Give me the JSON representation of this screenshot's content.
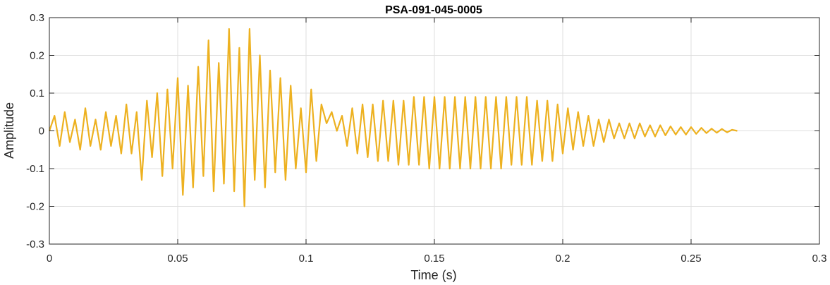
{
  "chart_data": {
    "type": "line",
    "title": "PSA-091-045-0005",
    "xlabel": "Time (s)",
    "ylabel": "Amplitude",
    "xlim": [
      0,
      0.3
    ],
    "ylim": [
      -0.3,
      0.3
    ],
    "grid": true,
    "x_ticks": [
      {
        "value": 0,
        "label": "0"
      },
      {
        "value": 0.05,
        "label": "0.05"
      },
      {
        "value": 0.1,
        "label": "0.1"
      },
      {
        "value": 0.15,
        "label": "0.15"
      },
      {
        "value": 0.2,
        "label": "0.2"
      },
      {
        "value": 0.25,
        "label": "0.25"
      },
      {
        "value": 0.3,
        "label": "0.3"
      }
    ],
    "y_ticks": [
      {
        "value": -0.3,
        "label": "-0.3"
      },
      {
        "value": -0.2,
        "label": "-0.2"
      },
      {
        "value": -0.1,
        "label": "-0.1"
      },
      {
        "value": 0,
        "label": "0"
      },
      {
        "value": 0.1,
        "label": "0.1"
      },
      {
        "value": 0.2,
        "label": "0.2"
      },
      {
        "value": 0.3,
        "label": "0.3"
      }
    ],
    "colors": {
      "line": "#EDB120",
      "grid": "#dfdfdf",
      "axis": "#262626"
    },
    "series": [
      {
        "x": [
          0,
          0.002,
          0.004,
          0.006,
          0.008,
          0.01,
          0.012,
          0.014,
          0.016,
          0.018,
          0.02,
          0.022,
          0.024,
          0.026,
          0.028,
          0.03,
          0.032,
          0.034,
          0.036,
          0.038,
          0.04,
          0.042,
          0.044,
          0.046,
          0.048,
          0.05,
          0.052,
          0.054,
          0.056,
          0.058,
          0.06,
          0.062,
          0.064,
          0.066,
          0.068,
          0.07,
          0.072,
          0.074,
          0.076,
          0.078,
          0.08,
          0.082,
          0.084,
          0.086,
          0.088,
          0.09,
          0.092,
          0.094,
          0.096,
          0.098,
          0.1,
          0.102,
          0.104,
          0.106,
          0.108,
          0.11,
          0.112,
          0.114,
          0.116,
          0.118,
          0.12,
          0.122,
          0.124,
          0.126,
          0.128,
          0.13,
          0.132,
          0.134,
          0.136,
          0.138,
          0.14,
          0.142,
          0.144,
          0.146,
          0.148,
          0.15,
          0.152,
          0.154,
          0.156,
          0.158,
          0.16,
          0.162,
          0.164,
          0.166,
          0.168,
          0.17,
          0.172,
          0.174,
          0.176,
          0.178,
          0.18,
          0.182,
          0.184,
          0.186,
          0.188,
          0.19,
          0.192,
          0.194,
          0.196,
          0.198,
          0.2,
          0.202,
          0.204,
          0.206,
          0.208,
          0.21,
          0.212,
          0.214,
          0.216,
          0.218,
          0.22,
          0.222,
          0.224,
          0.226,
          0.228,
          0.23,
          0.232,
          0.234,
          0.236,
          0.238,
          0.24,
          0.242,
          0.244,
          0.246,
          0.248,
          0.25,
          0.252,
          0.254,
          0.256,
          0.258,
          0.26,
          0.262,
          0.264,
          0.266,
          0.268
        ],
        "y": [
          0,
          0.04,
          -0.04,
          0.05,
          -0.03,
          0.03,
          -0.05,
          0.06,
          -0.04,
          0.03,
          -0.05,
          0.05,
          -0.04,
          0.04,
          -0.06,
          0.07,
          -0.06,
          0.05,
          -0.13,
          0.08,
          -0.07,
          0.1,
          -0.12,
          0.11,
          -0.1,
          0.14,
          -0.17,
          0.12,
          -0.15,
          0.17,
          -0.12,
          0.24,
          -0.16,
          0.18,
          -0.14,
          0.27,
          -0.16,
          0.22,
          -0.2,
          0.27,
          -0.13,
          0.2,
          -0.15,
          0.16,
          -0.11,
          0.14,
          -0.13,
          0.12,
          -0.1,
          0.06,
          -0.11,
          0.11,
          -0.08,
          0.07,
          0.02,
          0.05,
          0.0,
          0.04,
          -0.04,
          0.06,
          -0.06,
          0.07,
          -0.07,
          0.07,
          -0.08,
          0.08,
          -0.08,
          0.08,
          -0.09,
          0.08,
          -0.09,
          0.09,
          -0.09,
          0.09,
          -0.1,
          0.09,
          -0.1,
          0.09,
          -0.1,
          0.09,
          -0.1,
          0.09,
          -0.1,
          0.09,
          -0.1,
          0.09,
          -0.1,
          0.09,
          -0.1,
          0.09,
          -0.09,
          0.09,
          -0.09,
          0.09,
          -0.09,
          0.08,
          -0.08,
          0.08,
          -0.08,
          0.07,
          -0.06,
          0.06,
          -0.05,
          0.05,
          -0.04,
          0.04,
          -0.04,
          0.03,
          -0.03,
          0.03,
          -0.02,
          0.02,
          -0.02,
          0.02,
          -0.02,
          0.02,
          -0.015,
          0.015,
          -0.015,
          0.015,
          -0.012,
          0.012,
          -0.01,
          0.01,
          -0.01,
          0.01,
          -0.008,
          0.008,
          -0.006,
          0.006,
          -0.005,
          0.005,
          -0.004,
          0.003,
          0.0
        ]
      }
    ]
  }
}
